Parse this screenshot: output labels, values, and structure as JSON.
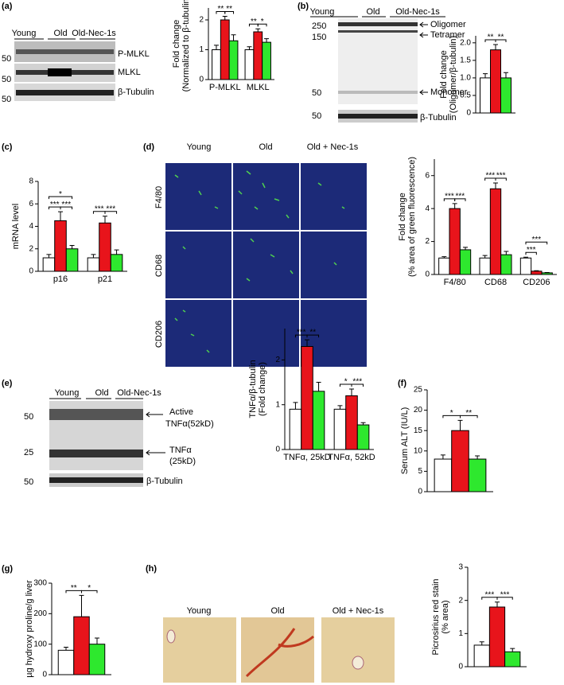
{
  "panel_labels": [
    "(a)",
    "(b)",
    "(c)",
    "(d)",
    "(e)",
    "(f)",
    "(g)",
    "(h)"
  ],
  "blot_a": {
    "groups": [
      "Young",
      "Old",
      "Old-Nec-1s"
    ],
    "markers": [
      50,
      50,
      50
    ],
    "bands": [
      "P-MLKL",
      "MLKL",
      "β-Tubulin"
    ]
  },
  "blot_b": {
    "groups": [
      "Young",
      "Old",
      "Old-Nec-1s"
    ],
    "markers": [
      250,
      150,
      50,
      50
    ],
    "bands": [
      "Oligomer",
      "Tetramer",
      "Monomer",
      "β-Tubulin"
    ]
  },
  "images_d": {
    "columns": [
      "Young",
      "Old",
      "Old + Nec-1s"
    ],
    "rows": [
      "F4/80",
      "CD68",
      "CD206"
    ]
  },
  "blot_e": {
    "groups": [
      "Young",
      "Old",
      "Old-Nec-1s"
    ],
    "markers": [
      50,
      25,
      50
    ],
    "bands": [
      "Active",
      "TNFα(52kD)",
      "TNFα",
      "(25kD)",
      "β-Tubulin"
    ]
  },
  "images_h": {
    "columns": [
      "Young",
      "Old",
      "Old + Nec-1s"
    ]
  },
  "chart_data": [
    {
      "type": "bar",
      "ylabel": [
        "Fold change",
        "(Normalized to β-tubulin)"
      ],
      "categories": [
        "P-MLKL",
        "MLKL"
      ],
      "series": [
        {
          "color": "#ffffff",
          "values": [
            1.0,
            1.0
          ],
          "errors": [
            0.15,
            0.1
          ]
        },
        {
          "color": "#e8141b",
          "values": [
            2.0,
            1.6
          ],
          "errors": [
            0.12,
            0.1
          ]
        },
        {
          "color": "#2ee82e",
          "values": [
            1.3,
            1.25
          ],
          "errors": [
            0.2,
            0.12
          ]
        }
      ],
      "ylim": [
        0,
        2.4
      ],
      "yticks": [
        0,
        1,
        2
      ],
      "annotations": [
        "**",
        "**",
        "**",
        "*"
      ]
    },
    {
      "type": "bar",
      "ylabel": [
        "Fold change",
        "(Oligomer/β-tubulin)"
      ],
      "series": [
        {
          "color": "#ffffff",
          "values": [
            1.0
          ],
          "errors": [
            0.12
          ]
        },
        {
          "color": "#e8141b",
          "values": [
            1.8
          ],
          "errors": [
            0.15
          ]
        },
        {
          "color": "#2ee82e",
          "values": [
            1.0
          ],
          "errors": [
            0.15
          ]
        }
      ],
      "ylim": [
        0,
        2.2
      ],
      "yticks": [
        0,
        0.5,
        {
          "value": 1,
          "label": "1.0"
        },
        1.5,
        {
          "value": 2,
          "label": "2.0"
        }
      ],
      "annotations": [
        "**",
        "**"
      ]
    },
    {
      "type": "bar",
      "ylabel": [
        "mRNA level"
      ],
      "categories": [
        "p16",
        "p21"
      ],
      "series": [
        {
          "color": "#ffffff",
          "values": [
            1.2,
            1.2
          ],
          "errors": [
            0.3,
            0.3
          ]
        },
        {
          "color": "#e8141b",
          "values": [
            4.5,
            4.3
          ],
          "errors": [
            0.8,
            0.6
          ]
        },
        {
          "color": "#2ee82e",
          "values": [
            2.0,
            1.5
          ],
          "errors": [
            0.3,
            0.4
          ]
        }
      ],
      "ylim": [
        0,
        8
      ],
      "yticks": [
        0,
        2,
        4,
        6,
        8
      ],
      "annotations": [
        "*",
        "***",
        "***",
        "***",
        "***"
      ]
    },
    {
      "type": "bar",
      "ylabel": [
        "Fold change",
        "(% area of green fluorescence)"
      ],
      "categories": [
        "F4/80",
        "CD68",
        "CD206"
      ],
      "series": [
        {
          "color": "#ffffff",
          "values": [
            1.0,
            1.0,
            1.0
          ],
          "errors": [
            0.08,
            0.15,
            0.05
          ]
        },
        {
          "color": "#e8141b",
          "values": [
            4.0,
            5.2,
            0.2
          ],
          "errors": [
            0.3,
            0.35,
            0.03
          ]
        },
        {
          "color": "#2ee82e",
          "values": [
            1.5,
            1.2,
            0.1
          ],
          "errors": [
            0.15,
            0.2,
            0.02
          ]
        }
      ],
      "ylim": [
        0,
        7
      ],
      "yticks": [
        0,
        2,
        4,
        6
      ],
      "annotations": [
        "***",
        "***",
        "***",
        "***",
        "***",
        "***"
      ]
    },
    {
      "type": "bar",
      "ylabel": [
        "TNFα/β-tubulin",
        "(Fold change)"
      ],
      "categories": [
        "TNFα, 25kD",
        "TNFα, 52kD"
      ],
      "series": [
        {
          "color": "#ffffff",
          "values": [
            0.9,
            0.9
          ],
          "errors": [
            0.15,
            0.08
          ]
        },
        {
          "color": "#e8141b",
          "values": [
            2.3,
            1.2
          ],
          "errors": [
            0.15,
            0.15
          ]
        },
        {
          "color": "#2ee82e",
          "values": [
            1.3,
            0.55
          ],
          "errors": [
            0.2,
            0.05
          ]
        }
      ],
      "ylim": [
        0,
        2.7
      ],
      "yticks": [
        0,
        1,
        2
      ],
      "annotations": [
        "***",
        "**",
        "*",
        "***"
      ]
    },
    {
      "type": "bar",
      "ylabel": [
        "Serum ALT (IU/L)"
      ],
      "series": [
        {
          "color": "#ffffff",
          "values": [
            8
          ],
          "errors": [
            1
          ]
        },
        {
          "color": "#e8141b",
          "values": [
            15
          ],
          "errors": [
            2.5
          ]
        },
        {
          "color": "#2ee82e",
          "values": [
            8
          ],
          "errors": [
            0.8
          ]
        }
      ],
      "ylim": [
        0,
        25
      ],
      "yticks": [
        0,
        5,
        10,
        15,
        20,
        25
      ],
      "annotations": [
        "*",
        "**"
      ]
    },
    {
      "type": "bar",
      "ylabel": [
        "µg hydroxy proline/g liver"
      ],
      "series": [
        {
          "color": "#ffffff",
          "values": [
            80
          ],
          "errors": [
            10
          ]
        },
        {
          "color": "#e8141b",
          "values": [
            190
          ],
          "errors": [
            70
          ]
        },
        {
          "color": "#2ee82e",
          "values": [
            100
          ],
          "errors": [
            20
          ]
        }
      ],
      "ylim": [
        0,
        300
      ],
      "yticks": [
        0,
        100,
        200,
        300
      ],
      "annotations": [
        "**",
        "*"
      ]
    },
    {
      "type": "bar",
      "ylabel": [
        "Picrosirius red stain",
        "(% area)"
      ],
      "series": [
        {
          "color": "#ffffff",
          "values": [
            0.65
          ],
          "errors": [
            0.1
          ]
        },
        {
          "color": "#e8141b",
          "values": [
            1.8
          ],
          "errors": [
            0.15
          ]
        },
        {
          "color": "#2ee82e",
          "values": [
            0.45
          ],
          "errors": [
            0.1
          ]
        }
      ],
      "ylim": [
        0,
        3
      ],
      "yticks": [
        0,
        1,
        2,
        3
      ],
      "annotations": [
        "***",
        "***"
      ]
    }
  ]
}
